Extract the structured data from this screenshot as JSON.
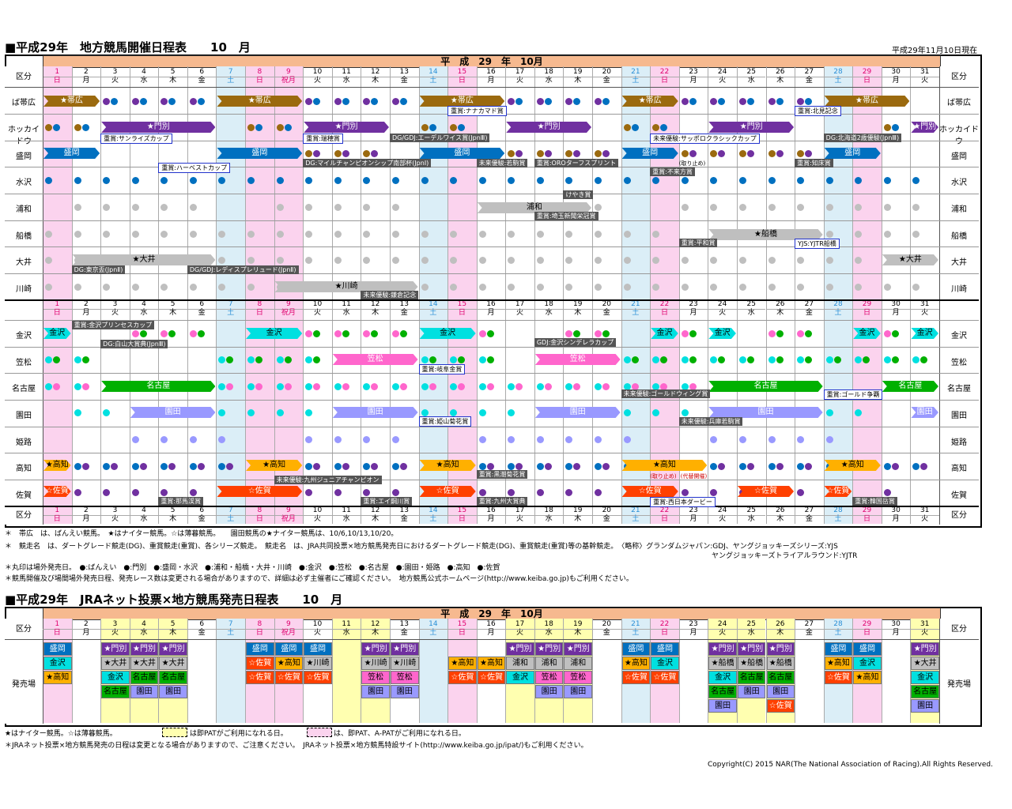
{
  "title1": "■平成29年　地方競馬開催日程表　　10　月",
  "asof": "平成29年11月10日現在",
  "band1": "平　成　29　年　10月",
  "kubun": "区分",
  "days": [
    "1",
    "2",
    "3",
    "4",
    "5",
    "6",
    "7",
    "8",
    "9",
    "10",
    "11",
    "12",
    "13",
    "14",
    "15",
    "16",
    "17",
    "18",
    "19",
    "20",
    "21",
    "22",
    "23",
    "24",
    "25",
    "26",
    "27",
    "28",
    "29",
    "30",
    "31"
  ],
  "weekdays": [
    "日",
    "月",
    "火",
    "水",
    "木",
    "金",
    "土",
    "日",
    "祝月",
    "火",
    "水",
    "木",
    "金",
    "土",
    "日",
    "月",
    "火",
    "水",
    "木",
    "金",
    "土",
    "日",
    "月",
    "火",
    "水",
    "木",
    "金",
    "土",
    "日",
    "月",
    "火"
  ],
  "tracks_top": [
    "ば帯広",
    "ホッカイドウ",
    "盛岡",
    "水沢",
    "浦和",
    "船橋",
    "大井",
    "川崎"
  ],
  "tracks_bottom": [
    "金沢",
    "笠松",
    "名古屋",
    "園田",
    "姫路",
    "高知",
    "佐賀"
  ],
  "arrows": {
    "obihiro": "帯広",
    "monbetsu": "門別",
    "morioka": "盛岡",
    "urawa": "浦和",
    "funabashi": "船橋",
    "oi": "大井",
    "kawasaki": "川崎",
    "kanazawa": "金沢",
    "kasamatsu": "笠松",
    "nagoya": "名古屋",
    "sonoda": "園田",
    "kochi": "高知",
    "saga": "佐賀"
  },
  "events": [
    "重賞:ナナカマド賞",
    "重賞:北見記念",
    "重賞:サンライズカップ",
    "重賞:瑞穂賞",
    "DG/GDJ:エーデルワイス賞(JpnⅢ)",
    "未来優駿:サッポロクラシックカップ",
    "DG:北海道2歳優駿(JpnⅢ)",
    "重賞:ハーベストカップ",
    "DG:マイルチャンピオンシップ南部杯(JpnⅠ)",
    "未来優駿:若駒賞",
    "重賞:OROターフスプリント",
    "重賞:不来方賞",
    "重賞:知床賞",
    "けやき賞",
    "重賞:埼玉新聞栄冠賞",
    "重賞:平和賞",
    "YJS:YJTR船橋",
    "DG:東京盃(JpnⅡ)",
    "DG/GDJ:レディスプレリュード(JpnⅡ)",
    "未来優駿:鎌倉記念",
    "重賞:金沢プリンセスカップ",
    "DG:白山大賞典(JpnⅢ)",
    "GDJ:金沢シンデレラカップ",
    "重賞:岐阜金賞",
    "未来優駿:ゴールドウィング賞",
    "重賞:ゴールド争覇",
    "重賞:姫山菊花賞",
    "未来優駿:兵庫若駒賞",
    "重賞:黒潮菊花賞",
    "未来優駿:九州ジュニアチャンピオン",
    "重賞:那馬渓賞",
    "重賞:エイ鋼川賞",
    "重賞:九州大賞典",
    "重賞:西日本ダービー",
    "重賞:韓国岳賞"
  ],
  "notes_small": [
    "(取り止め)",
    "(代替開催)"
  ],
  "legend": [
    "＊　帯広　は、ばんえい競馬。　★はナイター競馬。☆は薄暮競馬。　　園田競馬の★ナイター競馬は、10/6,10/13,10/20。",
    "＊　競走名　は、ダートグレード競走(DG)、重賞競走(重賞)、各シリーズ競走。　競走名　は、JRA共同投票×地方競馬発売日におけるダートグレード競走(DG)、重賞競走(重賞)等の基幹競走。　〈略称〉グランダムジャパン:GDJ、ヤングジョッキーズシリーズ:YJS",
    "ヤングジョッキーズトライアルラウンド:YJTR",
    "＊丸印は場外発売日。　●:ばんえい　●:門別　●:盛岡・水沢　●:浦和・船橋・大井・川崎　●:金沢　●:笠松　●:名古屋　●:園田・姫路　●:高知　●:佐賀",
    "＊競馬開催及び場間場外発売日程、発売レース数は変更される場合がありますので、詳細は必ず主催者にご確認ください。　地方競馬公式ホームページ(http://www.keiba.go.jp)もご利用ください。"
  ],
  "title2": "■平成29年　JRAネット投票×地方競馬発売日程表　　10　月",
  "band2": "平　成　29　年　10月",
  "hatsubai": "発売場",
  "sell_rows": {
    "r1": [
      "盛岡",
      "",
      "★門別",
      "★門別",
      "★門別",
      "",
      "",
      "盛岡",
      "盛岡",
      "盛岡",
      "",
      "★門別",
      "★門別",
      "",
      "",
      "",
      "★門別",
      "★門別",
      "★門別",
      "",
      "盛岡",
      "盛岡",
      "",
      "★門別",
      "★門別",
      "★門別",
      "",
      "盛岡",
      "盛岡",
      "",
      "★門別"
    ],
    "r2": [
      "金沢",
      "",
      "★大井",
      "★大井",
      "★大井",
      "",
      "",
      "☆佐賀",
      "★高知",
      "★川崎",
      "",
      "★川崎",
      "★川崎",
      "",
      "★高知",
      "★高知",
      "浦和",
      "浦和",
      "浦和",
      "",
      "★高知",
      "金沢",
      "",
      "★船橋",
      "★船橋",
      "★船橋",
      "",
      "★高知",
      "金沢",
      "",
      "★大井"
    ],
    "r3": [
      "★高知",
      "",
      "金沢",
      "名古屋",
      "名古屋",
      "",
      "",
      "☆佐賀",
      "☆佐賀",
      "☆佐賀",
      "",
      "笠松",
      "笠松",
      "",
      "☆佐賀",
      "☆佐賀",
      "金沢",
      "笠松",
      "笠松",
      "",
      "☆佐賀",
      "☆佐賀",
      "",
      "金沢",
      "名古屋",
      "名古屋",
      "",
      "☆佐賀",
      "★高知",
      "",
      "金沢"
    ],
    "r4": [
      "",
      "",
      "名古屋",
      "園田",
      "園田",
      "",
      "",
      "",
      "",
      "",
      "",
      "園田",
      "園田",
      "",
      "",
      "",
      "",
      "園田",
      "園田",
      "",
      "",
      "",
      "",
      "名古屋",
      "園田",
      "園田",
      "",
      "",
      "",
      "",
      "名古屋"
    ],
    "r5": [
      "",
      "",
      "",
      "",
      "",
      "",
      "",
      "",
      "",
      "",
      "",
      "",
      "",
      "",
      "",
      "",
      "",
      "",
      "",
      "",
      "",
      "",
      "",
      "園田",
      "",
      "☆佐賀",
      "",
      "",
      "",
      "",
      "園田"
    ]
  },
  "legend2": [
    "★はナイター競馬。☆は薄暮競馬。",
    "は即PATがご利用になれる日。",
    "は、即PAT、A-PATがご利用になれる日。",
    "＊JRAネット投票×地方競馬発売の日程は変更となる場合がありますので、ご注意ください。　JRAネット投票×地方競馬特設サイト(http://www.keiba.go.jp/ipat/)もご利用ください。"
  ],
  "copyright": "Copyright(C) 2015 NAR(The National Association of Racing).All Rights Reserved.",
  "colors": {
    "obihiro": "#9b6a0f",
    "monbetsu": "#7030a0",
    "iwate": "#0070c0",
    "kanto": "#bfbfbf",
    "kanazawa": "#00e0e0",
    "kasamatsu": "#ff66cc",
    "nagoya": "#00b000",
    "hyogo": "#9999ff",
    "kochi": "#ffb000",
    "saga": "#ff4000",
    "sat": "#dbeef7",
    "sun": "#fbd3ee",
    "yel": "#ffffb0",
    "band": "#f6b98f"
  }
}
